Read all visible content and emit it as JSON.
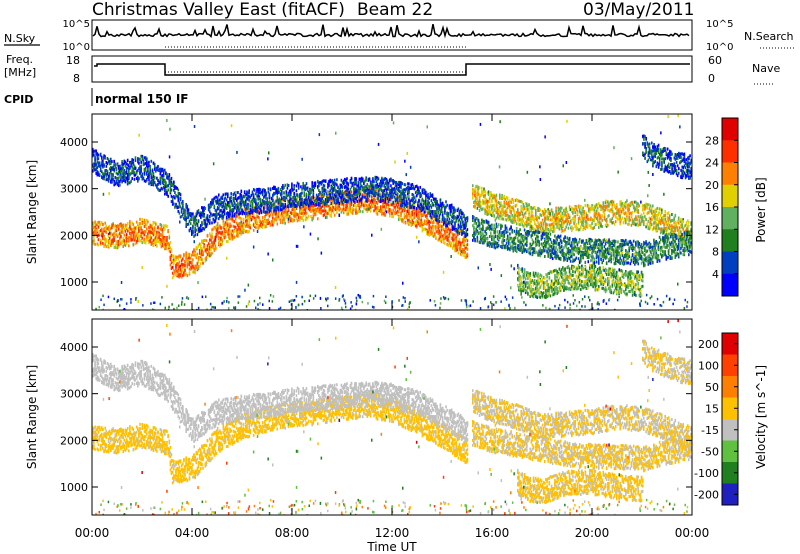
{
  "header": {
    "title": "Christmas Valley East (fitACF)",
    "beam": "Beam 22",
    "date": "03/May/2011"
  },
  "top_panels": {
    "nsky": {
      "label": "N.Sky",
      "ticks_left": [
        "10^5",
        "10^0"
      ],
      "ticks_right": [
        "10^5",
        "10^0"
      ],
      "right_label": "N.Search"
    },
    "freq": {
      "label_line1": "Freq.",
      "label_line2": "[MHz]",
      "ticks_left": [
        "18",
        "8"
      ],
      "ticks_right": [
        "60",
        "0"
      ],
      "right_label": "Nave"
    },
    "cpid": {
      "label": "CPID",
      "mode": "normal 150 IF"
    }
  },
  "chart_data": [
    {
      "type": "heatmap",
      "name": "Power",
      "xlabel": "",
      "ylabel": "Slant Range [km]",
      "x_ticks": [
        "00:00",
        "04:00",
        "08:00",
        "12:00",
        "16:00",
        "20:00",
        "00:00"
      ],
      "xlim_hours": [
        0,
        24
      ],
      "ylim_km": [
        400,
        4600
      ],
      "y_ticks": [
        1000,
        2000,
        3000,
        4000
      ],
      "colorbar": {
        "label": "Power [dB]",
        "ticks": [
          "4",
          "8",
          "12",
          "16",
          "20",
          "24",
          "28"
        ],
        "range": [
          0,
          32
        ],
        "colors": [
          "#0000ff",
          "#0040c0",
          "#208020",
          "#60b060",
          "#e0d000",
          "#ff8000",
          "#ff3000",
          "#e00000"
        ]
      },
      "bands": [
        {
          "t": [
            0,
            1,
            2,
            3,
            3.2,
            4,
            5,
            6,
            7,
            8,
            9,
            10,
            11,
            12,
            13,
            14,
            15
          ],
          "r": [
            2050,
            1980,
            2100,
            1950,
            1300,
            1400,
            2000,
            2300,
            2450,
            2550,
            2600,
            2700,
            2750,
            2650,
            2400,
            2100,
            1750
          ],
          "level": 24
        },
        {
          "t": [
            0,
            1,
            2,
            3,
            4,
            5,
            6,
            7,
            8,
            9,
            10,
            11,
            12,
            13,
            14,
            15
          ],
          "r": [
            3600,
            3300,
            3450,
            3100,
            2200,
            2600,
            2700,
            2750,
            2850,
            2900,
            2950,
            3000,
            2950,
            2800,
            2500,
            2200
          ],
          "level": 8
        },
        {
          "t": [
            15.2,
            16,
            17,
            18,
            19,
            20,
            21,
            22,
            23,
            24
          ],
          "r": [
            2850,
            2650,
            2500,
            2300,
            2350,
            2400,
            2500,
            2450,
            2250,
            2000
          ],
          "level": 20
        },
        {
          "t": [
            15.2,
            16,
            17,
            18,
            19,
            20,
            21,
            22,
            23,
            24
          ],
          "r": [
            2150,
            2000,
            1900,
            1800,
            1700,
            1650,
            1650,
            1600,
            1750,
            1850
          ],
          "level": 12
        },
        {
          "t": [
            17,
            17.5,
            18,
            18.5,
            19,
            20,
            21,
            22
          ],
          "r": [
            1100,
            950,
            900,
            1000,
            1100,
            1100,
            1000,
            950
          ],
          "level": 16
        },
        {
          "t": [
            22,
            22.5,
            23,
            23.5,
            24
          ],
          "r": [
            3900,
            3700,
            3600,
            3500,
            3450
          ],
          "level": 8
        }
      ]
    },
    {
      "type": "heatmap",
      "name": "Velocity",
      "xlabel": "Time UT",
      "ylabel": "Slant Range [km]",
      "x_ticks": [
        "00:00",
        "04:00",
        "08:00",
        "12:00",
        "16:00",
        "20:00",
        "00:00"
      ],
      "xlim_hours": [
        0,
        24
      ],
      "ylim_km": [
        400,
        4600
      ],
      "y_ticks": [
        1000,
        2000,
        3000,
        4000
      ],
      "colorbar": {
        "label": "Velocity [m s^-1]",
        "ticks": [
          "200",
          "100",
          "50",
          "15",
          "-15",
          "-50",
          "-100",
          "-200"
        ],
        "range": [
          -250,
          250
        ],
        "colors": [
          "#2020c0",
          "#208020",
          "#60c040",
          "#c0c0c0",
          "#ffc000",
          "#ff8000",
          "#ff4000",
          "#e00000"
        ]
      },
      "bands": [
        {
          "t": [
            0,
            1,
            2,
            3,
            3.2,
            4,
            5,
            6,
            7,
            8,
            9,
            10,
            11,
            12,
            13,
            14,
            15
          ],
          "r": [
            2050,
            1980,
            2100,
            1950,
            1300,
            1400,
            2000,
            2300,
            2450,
            2550,
            2600,
            2700,
            2750,
            2650,
            2400,
            2100,
            1750
          ],
          "level": 15
        },
        {
          "t": [
            0,
            1,
            2,
            3,
            4,
            5,
            6,
            7,
            8,
            9,
            10,
            11,
            12,
            13,
            14,
            15
          ],
          "r": [
            3600,
            3300,
            3450,
            3100,
            2200,
            2600,
            2700,
            2750,
            2850,
            2900,
            2950,
            3000,
            2950,
            2800,
            2500,
            2200
          ],
          "level": -30
        },
        {
          "t": [
            15.2,
            16,
            17,
            18,
            19,
            20,
            21,
            22,
            23,
            24
          ],
          "r": [
            2850,
            2650,
            2500,
            2300,
            2350,
            2400,
            2500,
            2450,
            2250,
            2000
          ],
          "level": 0
        },
        {
          "t": [
            15.2,
            16,
            17,
            18,
            19,
            20,
            21,
            22,
            23,
            24
          ],
          "r": [
            2150,
            2000,
            1900,
            1800,
            1700,
            1650,
            1650,
            1600,
            1750,
            1850
          ],
          "level": 5
        },
        {
          "t": [
            17,
            17.5,
            18,
            18.5,
            19,
            20,
            21,
            22
          ],
          "r": [
            1100,
            950,
            900,
            1000,
            1100,
            1100,
            1000,
            950
          ],
          "level": 10
        },
        {
          "t": [
            22,
            22.5,
            23,
            23.5,
            24
          ],
          "r": [
            3900,
            3700,
            3600,
            3500,
            3450
          ],
          "level": 0
        }
      ]
    }
  ]
}
